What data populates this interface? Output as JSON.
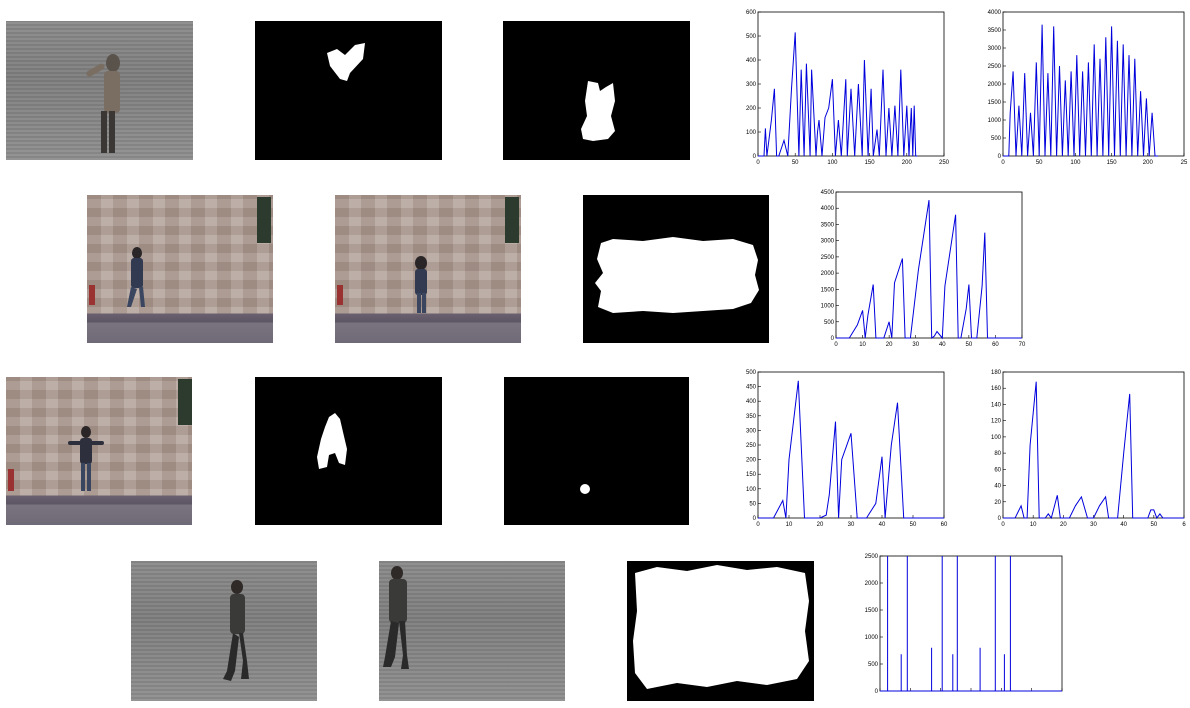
{
  "figure": {
    "rows": [
      {
        "row": 1,
        "frames": [
          {
            "name": "frame-person-grass-arms-raised",
            "kind": "photo-grass"
          },
          {
            "name": "mask-small-blob-heart",
            "kind": "mask"
          },
          {
            "name": "mask-small-blob-body",
            "kind": "mask"
          }
        ]
      },
      {
        "row": 2,
        "frames": [
          {
            "name": "frame-person-wall-1",
            "kind": "photo-wall"
          },
          {
            "name": "frame-person-wall-2",
            "kind": "photo-wall"
          },
          {
            "name": "mask-large-white-region",
            "kind": "mask"
          }
        ]
      },
      {
        "row": 3,
        "frames": [
          {
            "name": "frame-person-wall-arms-out",
            "kind": "photo-wall"
          },
          {
            "name": "mask-medium-blob-torso",
            "kind": "mask"
          },
          {
            "name": "mask-tiny-blob",
            "kind": "mask"
          }
        ]
      },
      {
        "row": 4,
        "frames": [
          {
            "name": "frame-person-walking-grass-1",
            "kind": "photo-grass"
          },
          {
            "name": "frame-person-walking-grass-2",
            "kind": "photo-grass"
          },
          {
            "name": "mask-white-with-black-border",
            "kind": "mask"
          }
        ]
      }
    ]
  },
  "chart_data": [
    {
      "id": "r1c1",
      "type": "line",
      "xlim": [
        0,
        250
      ],
      "ylim": [
        0,
        600
      ],
      "xticks": [
        "0",
        "50",
        "100",
        "150",
        "200",
        "250"
      ],
      "yticks": [
        "0",
        "100",
        "200",
        "300",
        "400",
        "500",
        "600"
      ],
      "series_color": "#0000dd",
      "series": [
        {
          "x": [
            0,
            8,
            10,
            12,
            18,
            22,
            25,
            28,
            35,
            40,
            45,
            50,
            55,
            58,
            62,
            65,
            70,
            72,
            78,
            80,
            82,
            86,
            90,
            95,
            100,
            104,
            108,
            112,
            118,
            120,
            125,
            130,
            135,
            140,
            143,
            148,
            152,
            155,
            160,
            163,
            168,
            172,
            176,
            180,
            184,
            188,
            192,
            196,
            200,
            203,
            206,
            208,
            210,
            212,
            214
          ],
          "y": [
            0,
            0,
            115,
            0,
            150,
            280,
            0,
            0,
            65,
            0,
            280,
            515,
            0,
            360,
            0,
            385,
            0,
            360,
            0,
            100,
            150,
            0,
            160,
            200,
            320,
            0,
            150,
            0,
            320,
            0,
            280,
            0,
            300,
            0,
            400,
            0,
            280,
            0,
            110,
            0,
            360,
            0,
            200,
            0,
            210,
            0,
            360,
            0,
            210,
            0,
            200,
            0,
            210,
            0,
            0
          ]
        }
      ]
    },
    {
      "id": "r1c2",
      "type": "line",
      "xlim": [
        0,
        250
      ],
      "ylim": [
        0,
        4000
      ],
      "xticks": [
        "0",
        "50",
        "100",
        "150",
        "200",
        "25"
      ],
      "yticks": [
        "0",
        "500",
        "1000",
        "1500",
        "2000",
        "2500",
        "3000",
        "3500",
        "4000"
      ],
      "series_color": "#0000dd",
      "series": [
        {
          "x": [
            0,
            8,
            10,
            14,
            18,
            22,
            26,
            30,
            34,
            38,
            42,
            46,
            50,
            54,
            58,
            62,
            66,
            70,
            74,
            78,
            82,
            86,
            90,
            94,
            98,
            102,
            106,
            110,
            114,
            118,
            122,
            126,
            130,
            134,
            138,
            142,
            146,
            150,
            154,
            158,
            162,
            166,
            170,
            174,
            178,
            182,
            186,
            190,
            194,
            198,
            202,
            206,
            210,
            214
          ],
          "y": [
            0,
            0,
            1200,
            2350,
            0,
            1400,
            0,
            2300,
            0,
            1200,
            0,
            2600,
            0,
            3650,
            0,
            2300,
            0,
            3600,
            0,
            2500,
            0,
            2100,
            0,
            2350,
            0,
            2800,
            0,
            2350,
            0,
            2600,
            0,
            3100,
            0,
            2700,
            0,
            3300,
            0,
            3600,
            0,
            3200,
            0,
            3100,
            0,
            2800,
            0,
            2700,
            0,
            1800,
            0,
            1600,
            0,
            1200,
            0,
            0
          ]
        }
      ]
    },
    {
      "id": "r2c1",
      "type": "line",
      "xlim": [
        0,
        70
      ],
      "ylim": [
        0,
        4500
      ],
      "xticks": [
        "0",
        "10",
        "20",
        "30",
        "40",
        "50",
        "60",
        "70"
      ],
      "yticks": [
        "0",
        "500",
        "1000",
        "1500",
        "2000",
        "2500",
        "3000",
        "3500",
        "4000",
        "4500"
      ],
      "series_color": "#0000dd",
      "series": [
        {
          "x": [
            0,
            5,
            8,
            10,
            11,
            12,
            14,
            15,
            18,
            20,
            21,
            22,
            25,
            26,
            27,
            28,
            31,
            35,
            36,
            37,
            38,
            40,
            41,
            45,
            46,
            47,
            49,
            50,
            51,
            53,
            55,
            56,
            57,
            59,
            60,
            65,
            70
          ],
          "y": [
            0,
            0,
            400,
            850,
            0,
            700,
            1650,
            0,
            0,
            500,
            0,
            1700,
            2450,
            0,
            0,
            0,
            2100,
            4250,
            0,
            60,
            200,
            0,
            1600,
            3800,
            0,
            0,
            900,
            1650,
            0,
            0,
            1600,
            3250,
            0,
            0,
            0,
            0,
            0
          ]
        }
      ]
    },
    {
      "id": "r3c1",
      "type": "line",
      "xlim": [
        0,
        60
      ],
      "ylim": [
        0,
        500
      ],
      "xticks": [
        "0",
        "10",
        "20",
        "30",
        "40",
        "50",
        "60"
      ],
      "yticks": [
        "0",
        "50",
        "100",
        "150",
        "200",
        "250",
        "300",
        "350",
        "400",
        "450",
        "500"
      ],
      "series_color": "#0000dd",
      "series": [
        {
          "x": [
            0,
            5,
            8,
            9,
            10,
            13,
            15,
            20,
            22,
            23,
            25,
            26,
            27,
            30,
            32,
            35,
            38,
            40,
            41,
            43,
            45,
            47,
            50,
            60
          ],
          "y": [
            0,
            0,
            60,
            0,
            200,
            470,
            0,
            0,
            10,
            80,
            330,
            0,
            200,
            290,
            0,
            0,
            50,
            210,
            0,
            250,
            395,
            0,
            0,
            0
          ]
        }
      ]
    },
    {
      "id": "r3c2",
      "type": "line",
      "xlim": [
        0,
        60
      ],
      "ylim": [
        0,
        180
      ],
      "xticks": [
        "0",
        "10",
        "20",
        "30",
        "40",
        "50",
        "6"
      ],
      "yticks": [
        "0",
        "20",
        "40",
        "60",
        "80",
        "100",
        "120",
        "140",
        "160",
        "180"
      ],
      "series_color": "#0000dd",
      "series": [
        {
          "x": [
            0,
            4,
            6,
            7,
            8,
            9,
            11,
            12,
            14,
            15,
            16,
            18,
            19,
            20,
            22,
            24,
            26,
            28,
            30,
            32,
            34,
            35,
            38,
            40,
            42,
            43,
            46,
            48,
            49,
            50,
            51,
            52,
            53,
            60
          ],
          "y": [
            0,
            0,
            15,
            0,
            0,
            90,
            168,
            0,
            0,
            5,
            0,
            28,
            0,
            0,
            0,
            15,
            26,
            0,
            0,
            15,
            26,
            0,
            0,
            80,
            153,
            0,
            0,
            0,
            10,
            10,
            0,
            5,
            0,
            0
          ]
        }
      ]
    },
    {
      "id": "r4c1",
      "type": "line",
      "xlim": [
        0,
        60
      ],
      "ylim": [
        0,
        2500
      ],
      "xticks": [
        "",
        "",
        "",
        "",
        "",
        "",
        ""
      ],
      "yticks": [
        "0",
        "500",
        "1000",
        "1500",
        "2000",
        "2500"
      ],
      "series_color": "#0000dd",
      "series": [
        {
          "x": [
            0,
            2.5,
            2.5,
            2.5,
            7,
            7,
            7,
            9,
            9,
            9,
            17,
            17,
            17,
            20.5,
            20.5,
            20.5,
            24,
            24,
            24,
            25.5,
            25.5,
            25.5,
            33,
            33,
            33,
            38,
            38,
            38,
            41,
            41,
            41,
            43,
            43,
            43,
            60
          ],
          "y": [
            0,
            0,
            2500,
            0,
            0,
            680,
            0,
            0,
            2500,
            0,
            0,
            800,
            0,
            0,
            2500,
            0,
            0,
            680,
            0,
            0,
            2500,
            0,
            0,
            800,
            0,
            0,
            2500,
            0,
            0,
            680,
            0,
            0,
            2500,
            0,
            0
          ]
        }
      ]
    }
  ]
}
